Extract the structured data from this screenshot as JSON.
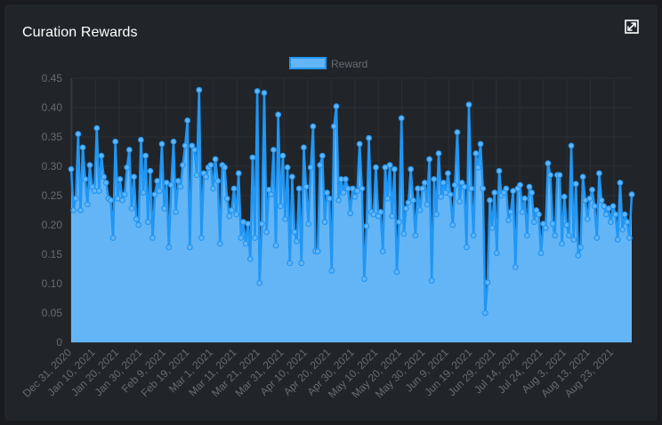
{
  "panel": {
    "title": "Curation Rewards",
    "expand_icon": "expand-icon"
  },
  "colors": {
    "background": "#1a1b1e",
    "panel": "#212529",
    "fill": "#64b5f6",
    "line": "#2196f3",
    "text": "#666b72"
  },
  "chart_data": {
    "type": "area",
    "title": "",
    "xlabel": "",
    "ylabel": "",
    "ylim": [
      0,
      0.45
    ],
    "yticks": [
      "0",
      "0.05",
      "0.10",
      "0.15",
      "0.20",
      "0.25",
      "0.30",
      "0.35",
      "0.40",
      "0.45"
    ],
    "xticks": [
      "Dec 31, 2020",
      "Jan 10, 2021",
      "Jan 20, 2021",
      "Jan 30, 2021",
      "Feb 9, 2021",
      "Feb 19, 2021",
      "Mar 1, 2021",
      "Mar 11, 2021",
      "Mar 21, 2021",
      "Mar 31, 2021",
      "Apr 10, 2021",
      "Apr 20, 2021",
      "Apr 30, 2021",
      "May 10, 2021",
      "May 20, 2021",
      "May 30, 2021",
      "Jun 9, 2021",
      "Jun 19, 2021",
      "Jun 29, 2021",
      "Jul 14, 2021",
      "Jul 24, 2021",
      "Aug 3, 2021",
      "Aug 13, 2021",
      "Aug 23, 2021"
    ],
    "legend": "top",
    "grid": true,
    "series": [
      {
        "name": "Reward",
        "values": [
          0.295,
          0.225,
          0.245,
          0.355,
          0.225,
          0.332,
          0.278,
          0.235,
          0.302,
          0.265,
          0.258,
          0.365,
          0.258,
          0.318,
          0.282,
          0.272,
          0.245,
          0.242,
          0.178,
          0.342,
          0.245,
          0.278,
          0.242,
          0.252,
          0.298,
          0.328,
          0.228,
          0.282,
          0.21,
          0.2,
          0.345,
          0.255,
          0.318,
          0.205,
          0.292,
          0.178,
          0.252,
          0.275,
          0.258,
          0.338,
          0.228,
          0.272,
          0.162,
          0.268,
          0.342,
          0.222,
          0.275,
          0.265,
          0.302,
          0.335,
          0.378,
          0.162,
          0.335,
          0.328,
          0.285,
          0.43,
          0.178,
          0.288,
          0.282,
          0.298,
          0.302,
          0.262,
          0.312,
          0.275,
          0.168,
          0.302,
          0.298,
          0.245,
          0.215,
          0.225,
          0.262,
          0.218,
          0.288,
          0.178,
          0.205,
          0.168,
          0.202,
          0.142,
          0.315,
          0.178,
          0.428,
          0.101,
          0.202,
          0.425,
          0.188,
          0.26,
          0.252,
          0.328,
          0.165,
          0.388,
          0.232,
          0.318,
          0.21,
          0.298,
          0.135,
          0.282,
          0.188,
          0.172,
          0.262,
          0.135,
          0.332,
          0.265,
          0.202,
          0.298,
          0.368,
          0.155,
          0.155,
          0.302,
          0.318,
          0.205,
          0.255,
          0.245,
          0.122,
          0.368,
          0.402,
          0.242,
          0.278,
          0.255,
          0.278,
          0.262,
          0.22,
          0.262,
          0.248,
          0.258,
          0.338,
          0.262,
          0.108,
          0.198,
          0.348,
          0.222,
          0.218,
          0.298,
          0.215,
          0.222,
          0.155,
          0.298,
          0.245,
          0.302,
          0.215,
          0.295,
          0.12,
          0.205,
          0.382,
          0.185,
          0.228,
          0.238,
          0.295,
          0.242,
          0.182,
          0.262,
          0.225,
          0.262,
          0.272,
          0.235,
          0.312,
          0.105,
          0.278,
          0.218,
          0.322,
          0.248,
          0.272,
          0.255,
          0.288,
          0.252,
          0.2,
          0.268,
          0.358,
          0.24,
          0.272,
          0.265,
          0.162,
          0.405,
          0.262,
          0.182,
          0.322,
          0.298,
          0.338,
          0.262,
          0.05,
          0.102,
          0.242,
          0.195,
          0.255,
          0.152,
          0.292,
          0.25,
          0.255,
          0.262,
          0.208,
          0.222,
          0.258,
          0.128,
          0.262,
          0.268,
          0.222,
          0.245,
          0.182,
          0.265,
          0.255,
          0.205,
          0.225,
          0.218,
          0.152,
          0.202,
          0.195,
          0.305,
          0.285,
          0.202,
          0.182,
          0.285,
          0.285,
          0.168,
          0.248,
          0.2,
          0.182,
          0.335,
          0.175,
          0.27,
          0.148,
          0.162,
          0.282,
          0.242,
          0.21,
          0.245,
          0.26,
          0.232,
          0.178,
          0.288,
          0.242,
          0.232,
          0.218,
          0.228,
          0.205,
          0.232,
          0.218,
          0.175,
          0.272,
          0.192,
          0.218,
          0.205,
          0.178,
          0.252
        ]
      }
    ]
  }
}
